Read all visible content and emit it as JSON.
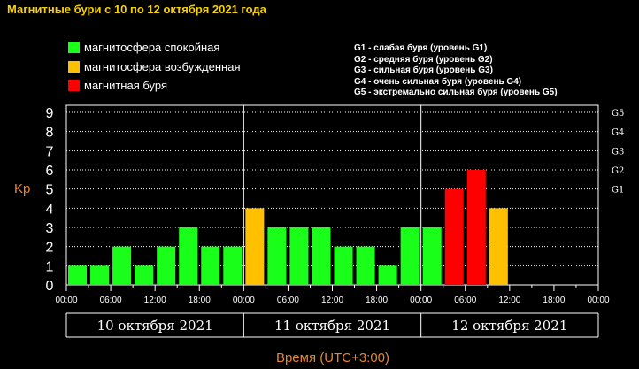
{
  "title": "Магнитные бури с 10 по 12 октября 2021 года",
  "legend": [
    {
      "label": "магнитосфера спокойная",
      "color": "#1aff1a"
    },
    {
      "label": "магнитосфера возбужденная",
      "color": "#ffc000"
    },
    {
      "label": "магнитная буря",
      "color": "#ff0000"
    }
  ],
  "g_legend": [
    "G1 - слабая буря (уровень G1)",
    "G2 - средняя буря (уровень G2)",
    "G3 - сильная буря (уровень G3)",
    "G4 - очень сильная буря (уровень G4)",
    "G5 - экстремально сильная буря (уровень G5)"
  ],
  "chart_data": {
    "type": "bar",
    "title": "Магнитные бури с 10 по 12 октября 2021 года",
    "ylabel": "Kp",
    "xlabel": "Время (UTC+3:00)",
    "ylim": [
      0,
      9
    ],
    "yticks": [
      "0",
      "1",
      "2",
      "3",
      "4",
      "5",
      "6",
      "7",
      "8",
      "9"
    ],
    "g_levels": [
      {
        "label": "G1",
        "value": 5
      },
      {
        "label": "G2",
        "value": 6
      },
      {
        "label": "G3",
        "value": 7
      },
      {
        "label": "G4",
        "value": 8
      },
      {
        "label": "G5",
        "value": 9
      }
    ],
    "days": [
      "10 октября 2021",
      "11 октября 2021",
      "12 октября 2021"
    ],
    "time_ticks": [
      "00:00",
      "06:00",
      "12:00",
      "18:00"
    ],
    "final_tick": "00:00",
    "slots_per_day": 8,
    "grid": true,
    "values": [
      1,
      1,
      2,
      1,
      2,
      3,
      2,
      2,
      4,
      3,
      3,
      3,
      2,
      2,
      1,
      3,
      3,
      5,
      6,
      4
    ],
    "colors": {
      "calm": "#1aff1a",
      "active": "#ffc000",
      "storm": "#ff0000"
    }
  }
}
